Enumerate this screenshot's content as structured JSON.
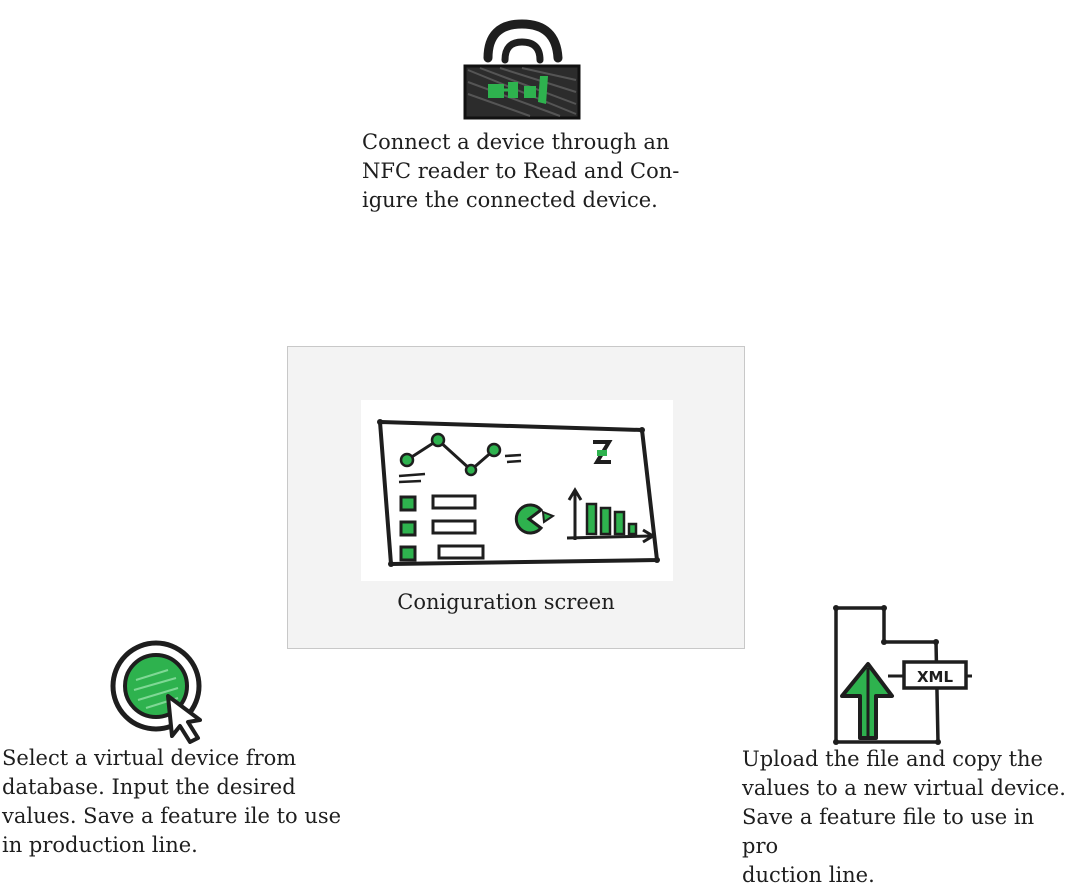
{
  "nfc": {
    "icon": "nfc-reader-icon",
    "caption": "Connect a device through an\nNFC reader to Read and Con-\nigure the connected device."
  },
  "configuration": {
    "icon": "configuration-screen-icon",
    "caption": "Coniguration screen"
  },
  "virtual_device": {
    "icon": "select-pointer-icon",
    "caption": "Select a virtual device from\ndatabase. Input the desired\nvalues. Save a feature ile to use\nin production line."
  },
  "upload": {
    "icon": "upload-file-icon",
    "file_label": "XML",
    "caption": "Upload the file and copy the\nvalues to a new virtual device.\nSave a feature file to use in pro\nduction line."
  },
  "colors": {
    "ink": "#1e1e1e",
    "accent_green": "#2eb24e",
    "panel_bg": "#f3f3f3",
    "panel_border": "#c8c8c8"
  }
}
